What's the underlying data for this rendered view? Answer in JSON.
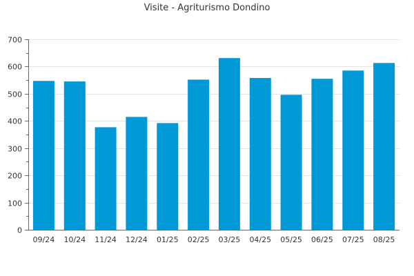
{
  "chart_data": {
    "type": "bar",
    "title": "Visite - Agriturismo Dondino",
    "xlabel": "",
    "ylabel": "",
    "categories": [
      "09/24",
      "10/24",
      "11/24",
      "12/24",
      "01/25",
      "02/25",
      "03/25",
      "04/25",
      "05/25",
      "06/25",
      "07/25",
      "08/25"
    ],
    "values": [
      547,
      545,
      377,
      415,
      392,
      552,
      631,
      558,
      496,
      555,
      585,
      613
    ],
    "ylim": [
      0,
      700
    ],
    "yticks": [
      0,
      100,
      200,
      300,
      400,
      500,
      600,
      700
    ],
    "grid": true,
    "legend": "none",
    "bar_color": "#0099d6"
  }
}
